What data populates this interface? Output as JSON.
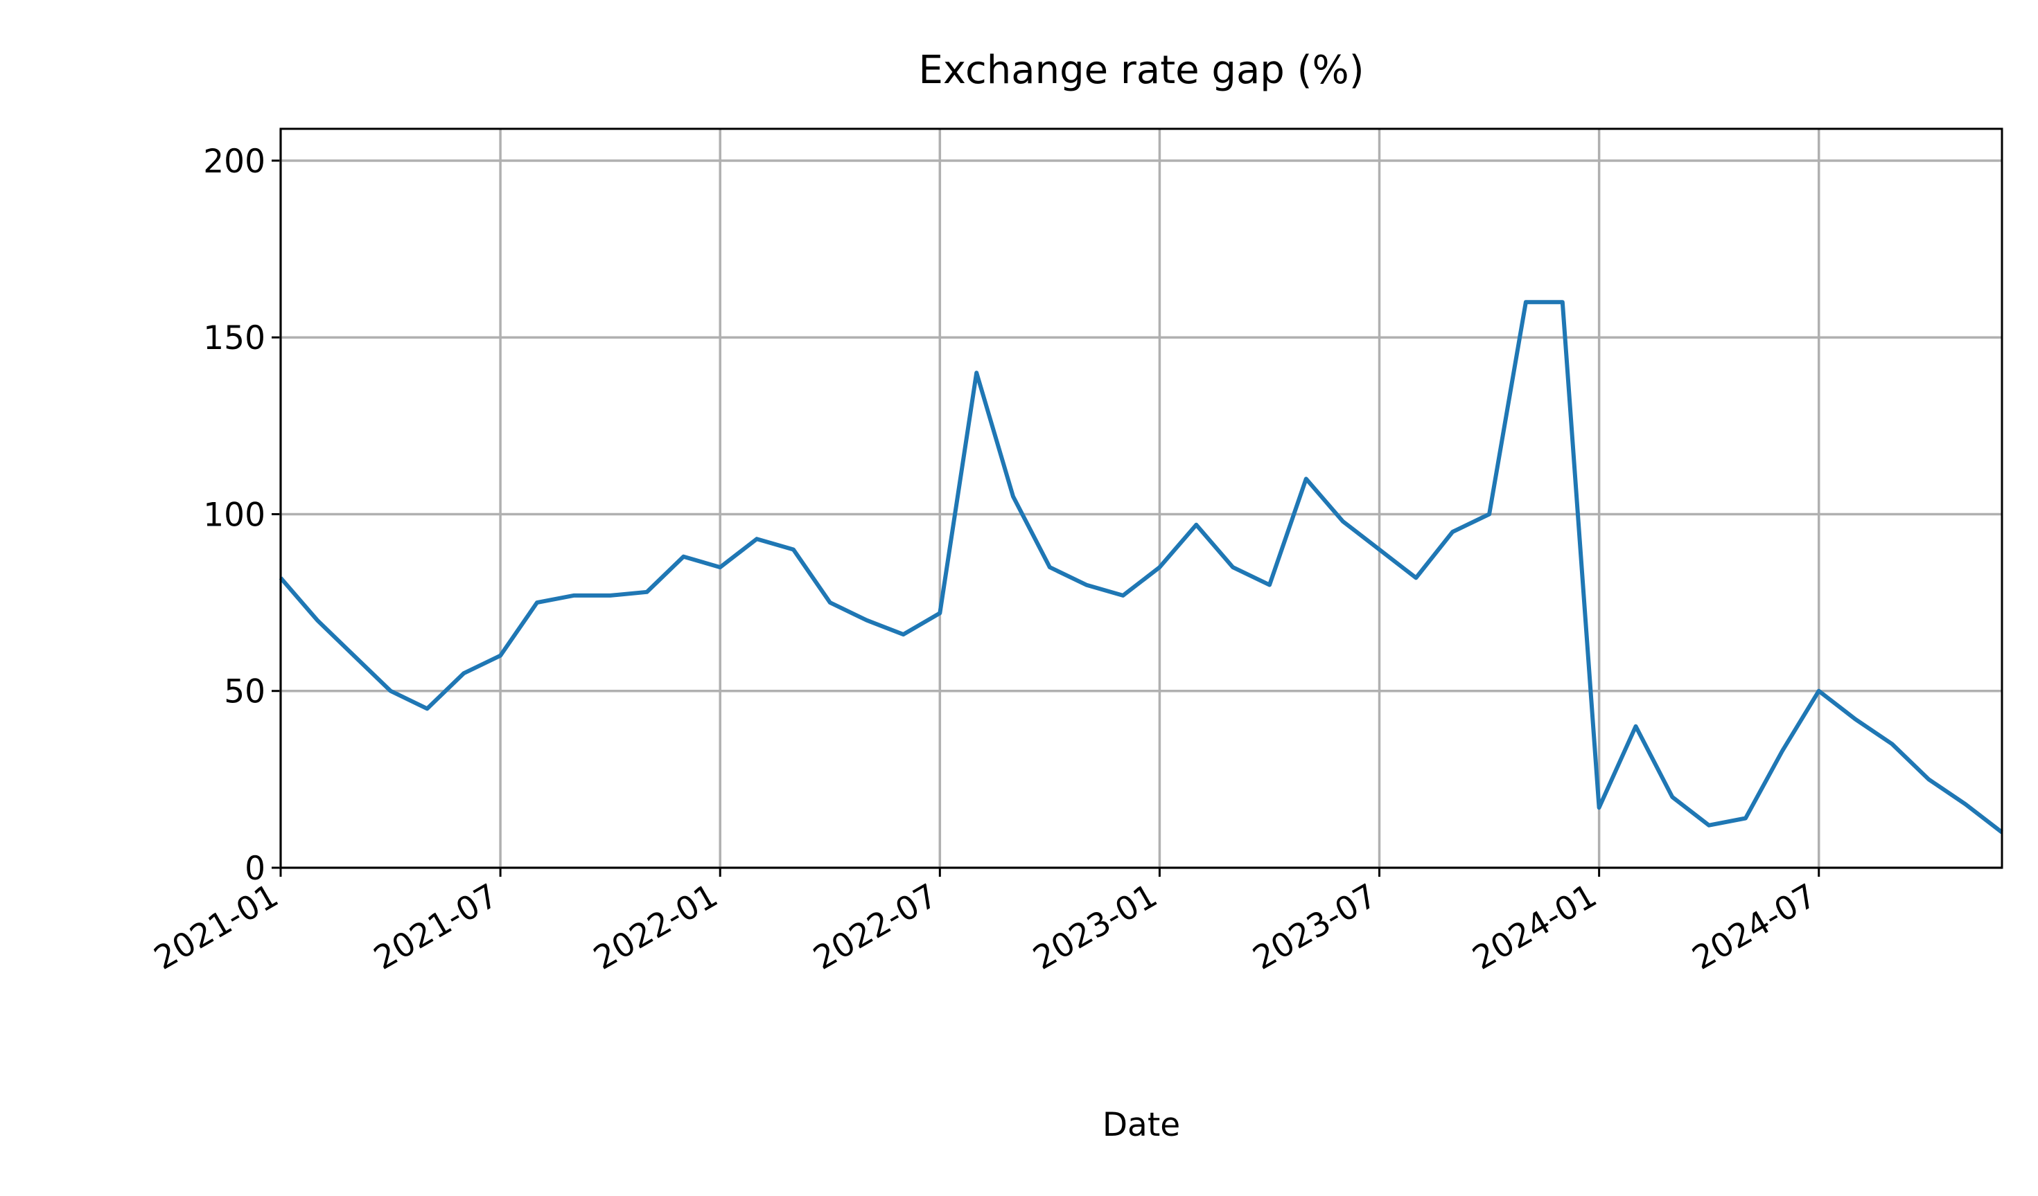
{
  "chart_data": {
    "type": "line",
    "title": "Exchange rate gap (%)",
    "x_label": "Date",
    "x": [
      "2021-01",
      "2021-02",
      "2021-03",
      "2021-04",
      "2021-05",
      "2021-06",
      "2021-07",
      "2021-08",
      "2021-09",
      "2021-10",
      "2021-11",
      "2021-12",
      "2022-01",
      "2022-02",
      "2022-03",
      "2022-04",
      "2022-05",
      "2022-06",
      "2022-07",
      "2022-08",
      "2022-09",
      "2022-10",
      "2022-11",
      "2022-12",
      "2023-01",
      "2023-02",
      "2023-03",
      "2023-04",
      "2023-05",
      "2023-06",
      "2023-07",
      "2023-08",
      "2023-09",
      "2023-10",
      "2023-11",
      "2023-12",
      "2024-01",
      "2024-02",
      "2024-03",
      "2024-04",
      "2024-05",
      "2024-06",
      "2024-07",
      "2024-08",
      "2024-09",
      "2024-10",
      "2024-11",
      "2024-12"
    ],
    "series": [
      {
        "name": "Exchange rate gap",
        "color": "#1f77b4",
        "values": [
          82,
          70,
          60,
          50,
          45,
          55,
          60,
          75,
          77,
          77,
          78,
          88,
          85,
          93,
          90,
          75,
          70,
          66,
          72,
          140,
          105,
          85,
          80,
          77,
          85,
          97,
          85,
          80,
          110,
          98,
          90,
          82,
          95,
          100,
          160,
          160,
          17,
          40,
          20,
          12,
          14,
          33,
          50,
          42,
          35,
          25,
          18,
          10
        ]
      }
    ],
    "xlim": [
      "2021-01",
      "2024-12"
    ],
    "xticks": [
      "2021-01",
      "2021-07",
      "2022-01",
      "2022-07",
      "2023-01",
      "2023-07",
      "2024-01",
      "2024-07"
    ],
    "ylim": [
      0,
      209
    ],
    "yticks": [
      0,
      50,
      100,
      150,
      200
    ],
    "grid": true
  }
}
